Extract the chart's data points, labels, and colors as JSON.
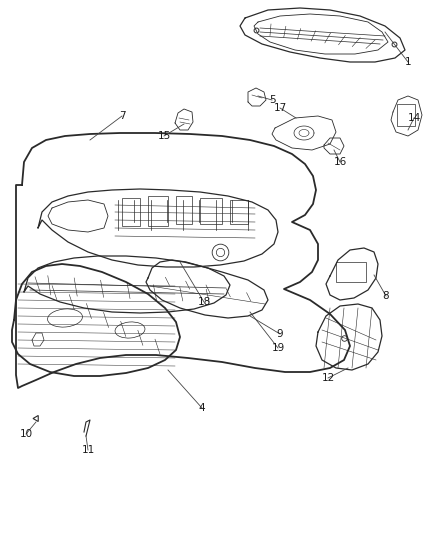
{
  "background_color": "#ffffff",
  "line_color": "#2a2a2a",
  "label_color": "#1a1a1a",
  "figure_width": 4.38,
  "figure_height": 5.33,
  "dpi": 100
}
